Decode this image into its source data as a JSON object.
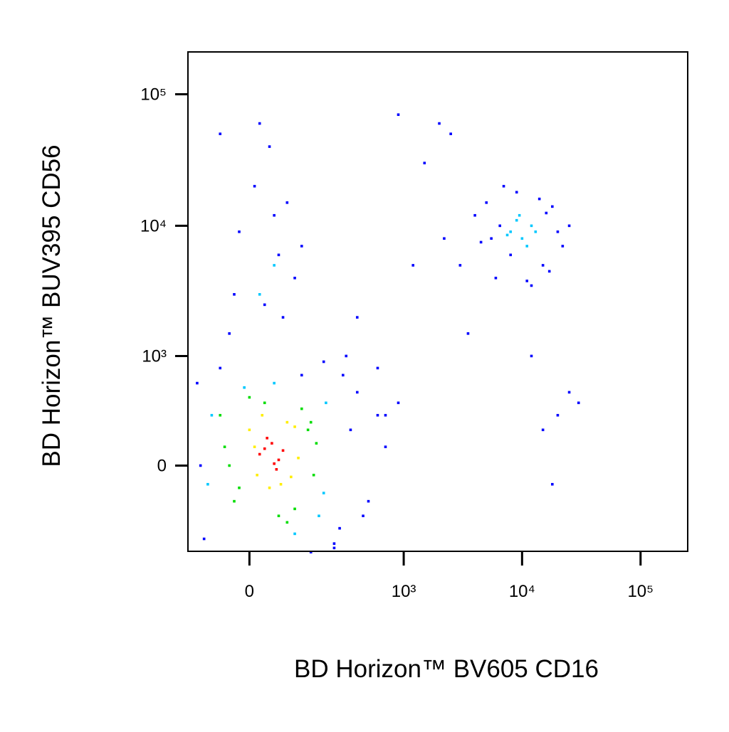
{
  "chart_data": {
    "type": "scatter",
    "x_label": "BD Horizon™ BV605 CD16",
    "y_label": "BD Horizon™ BUV395 CD56",
    "scale": "biexponential",
    "grid": false,
    "xlim": [
      -150,
      250000
    ],
    "ylim": [
      -640,
      210000
    ],
    "xticks": [
      0,
      {
        "value": 1000,
        "label": "10³"
      },
      {
        "value": 10000,
        "label": "10⁴"
      },
      {
        "value": 100000,
        "label": "10⁵"
      }
    ],
    "yticks": [
      0,
      {
        "value": 1000,
        "label": "10³"
      },
      {
        "value": 10000,
        "label": "10⁴"
      },
      {
        "value": 100000,
        "label": "10⁵"
      }
    ],
    "series": [
      {
        "color": "#0000ff",
        "x": [
          -100,
          -120,
          250,
          300,
          350,
          500,
          600,
          400,
          200,
          -110,
          150,
          700,
          280,
          450,
          900,
          -60,
          320,
          250,
          120,
          -40,
          30,
          60,
          -20,
          80,
          10,
          40,
          -60,
          100,
          50,
          -30,
          20,
          70,
          120,
          3000,
          4000,
          5000,
          6000,
          7000,
          8000,
          15000,
          18000,
          20000,
          22000,
          25000,
          12000,
          9000,
          6500,
          14000,
          17000,
          11000,
          5500,
          4500,
          16000,
          1500,
          2000,
          2500,
          3500,
          900,
          600,
          400,
          1200,
          20000,
          15000,
          25000,
          12000,
          18000,
          30000,
          2200,
          700
        ],
        "values": [
          -500,
          600,
          -600,
          700,
          200,
          -200,
          300,
          500,
          900,
          0,
          -650,
          100,
          -400,
          -300,
          400,
          800,
          1000,
          -550,
          700,
          1500,
          2500,
          6000,
          9000,
          15000,
          20000,
          40000,
          50000,
          4000,
          12000,
          3000,
          60000,
          2000,
          7000,
          5000,
          12000,
          15000,
          4000,
          20000,
          6000,
          5000,
          14000,
          9000,
          7000,
          10000,
          3500,
          18000,
          10000,
          16000,
          4500,
          3800,
          8000,
          7500,
          12500,
          30000,
          60000,
          50000,
          1500,
          70000,
          800,
          2000,
          5000,
          300,
          200,
          500,
          1000,
          -100,
          400,
          8000,
          300
        ]
      },
      {
        "color": "#00c8ff",
        "x": [
          -80,
          200,
          -90,
          210,
          100,
          -10,
          180,
          50,
          8000,
          10000,
          12000,
          9000,
          11000,
          7500,
          13000,
          9500,
          20,
          50
        ],
        "values": [
          300,
          -150,
          -100,
          400,
          -450,
          550,
          -300,
          600,
          9000,
          8000,
          10000,
          11000,
          7000,
          8500,
          9000,
          12000,
          3000,
          5000
        ]
      },
      {
        "color": "#00dd00",
        "x": [
          -50,
          140,
          -30,
          160,
          120,
          -60,
          60,
          30,
          170,
          -20,
          100,
          0,
          150,
          80,
          -40
        ],
        "values": [
          100,
          200,
          -200,
          -50,
          350,
          300,
          -300,
          400,
          120,
          -120,
          -250,
          450,
          250,
          -350,
          0
        ]
      },
      {
        "color": "#ffee00",
        "x": [
          0,
          90,
          15,
          100,
          40,
          80,
          10,
          65,
          25,
          110
        ],
        "values": [
          200,
          -60,
          -50,
          220,
          -120,
          250,
          100,
          -100,
          300,
          40
        ]
      },
      {
        "color": "#ff0000",
        "x": [
          20,
          45,
          60,
          35,
          70,
          50,
          30,
          55
        ],
        "values": [
          60,
          120,
          30,
          150,
          80,
          10,
          90,
          -20
        ]
      }
    ]
  }
}
